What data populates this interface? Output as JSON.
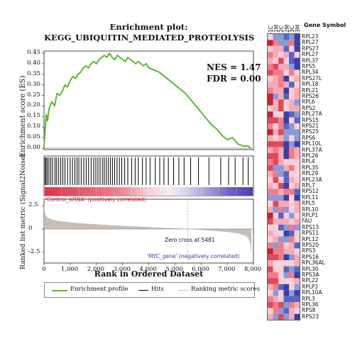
{
  "chart_data": {
    "type": "line",
    "title": "Enrichment plot:",
    "subtitle": "KEGG_UBIQUITIN_MEDIATED_PROTEOLYSIS",
    "nes": "NES = 1.47",
    "fdr": "FDR = 0.00",
    "es_ylabel": "Enrichment score (ES)",
    "es_yticks": [
      "0.45",
      "0.40",
      "0.35",
      "0.30",
      "0.25",
      "0.20",
      "0.15",
      "0.10",
      "0.05",
      "0.00"
    ],
    "es_ylim": [
      0,
      0.45
    ],
    "es_x": [
      0,
      50,
      90,
      130,
      200,
      300,
      400,
      500,
      600,
      700,
      800,
      900,
      1000,
      1100,
      1200,
      1300,
      1400,
      1500,
      1600,
      1700,
      1800,
      1900,
      2000,
      2100,
      2200,
      2300,
      2400,
      2500,
      2600,
      2700,
      2800,
      2900,
      3000,
      3100,
      3200,
      3300,
      3400,
      3500,
      3600,
      3700,
      3800,
      3900,
      4000,
      4200,
      4400,
      4600,
      4800,
      5000,
      5200,
      5400,
      5600,
      5800,
      6000,
      6200,
      6400,
      6600,
      6800,
      7000,
      7200,
      7400,
      7600,
      7800,
      7900
    ],
    "es_y": [
      0,
      0.1,
      0.16,
      0.13,
      0.19,
      0.22,
      0.2,
      0.26,
      0.25,
      0.27,
      0.3,
      0.29,
      0.32,
      0.34,
      0.33,
      0.35,
      0.36,
      0.38,
      0.39,
      0.38,
      0.4,
      0.41,
      0.4,
      0.42,
      0.43,
      0.44,
      0.43,
      0.45,
      0.43,
      0.42,
      0.44,
      0.43,
      0.42,
      0.41,
      0.43,
      0.42,
      0.41,
      0.4,
      0.41,
      0.4,
      0.39,
      0.4,
      0.38,
      0.37,
      0.36,
      0.34,
      0.32,
      0.3,
      0.28,
      0.26,
      0.23,
      0.2,
      0.17,
      0.14,
      0.11,
      0.09,
      0.06,
      0.04,
      0.05,
      0.02,
      0.01,
      0.01,
      0.0
    ],
    "hits": [
      40,
      80,
      130,
      190,
      260,
      330,
      420,
      480,
      560,
      640,
      720,
      800,
      900,
      1000,
      1090,
      1180,
      1260,
      1330,
      1420,
      1520,
      1610,
      1700,
      1800,
      1900,
      1980,
      2060,
      2140,
      2230,
      2300,
      2380,
      2460,
      2540,
      2620,
      2700,
      2790,
      2880,
      2970,
      3080,
      3200,
      3350,
      3480,
      3600,
      3760,
      3900,
      4050,
      4250,
      4420,
      4580,
      4750,
      4950,
      5150,
      5350,
      5600,
      5900,
      6300,
      6750,
      7050,
      7300,
      7600,
      7800
    ],
    "metric_ylabel": "Ranked list metric (Signal2Noise)",
    "metric_yticks": [
      "2.5",
      "0",
      "-2.5"
    ],
    "metric_ylim": [
      -3.2,
      3.2
    ],
    "metric_x": [
      0,
      30,
      80,
      150,
      300,
      600,
      1000,
      1500,
      2000,
      2500,
      3000,
      3500,
      4000,
      4500,
      5000,
      5481,
      6000,
      6500,
      7000,
      7400,
      7700,
      7800,
      7880,
      7920
    ],
    "metric_y": [
      2.7,
      1.8,
      1.4,
      1.2,
      1.0,
      0.85,
      0.7,
      0.6,
      0.5,
      0.42,
      0.35,
      0.28,
      0.2,
      0.13,
      0.07,
      0,
      -0.1,
      -0.2,
      -0.32,
      -0.48,
      -0.75,
      -1.0,
      -1.6,
      -2.7
    ],
    "pos_label": "'Control_siRNA' (positively correlated)",
    "neg_label": "'MYC_gene' (negatively correlated)",
    "zero_cross": "Zero cross at 5481",
    "zero_cross_x": 5481,
    "xlabel": "Rank in Ordered Dataset",
    "xticks": [
      "0",
      "1,000",
      "2,000",
      "3,000",
      "4,000",
      "5,000",
      "6,000",
      "7,000",
      "8,000"
    ],
    "xlim": [
      0,
      8000
    ],
    "legend": [
      "Enrichment profile",
      "Hits",
      "Ranking metric scores"
    ],
    "colors": {
      "es_line": "#5cb82e",
      "hit": "#000000",
      "metric_fill": "#c7beb7",
      "red": "#e2344a",
      "blue": "#4a3fb0"
    }
  },
  "heatmap": {
    "title": "Gene Symbol",
    "columns": [
      "1C",
      "1M",
      "2C",
      "2M",
      "3C",
      "3M"
    ],
    "genes": [
      "RPL23",
      "RPL27",
      "RPS27",
      "RPL27",
      "RPL37",
      "RPS5",
      "RPL34",
      "RPS27L",
      "RPL18",
      "RPL21",
      "RPS26",
      "RPL6",
      "RPS2",
      "RPL27A",
      "RPS15",
      "RPS21",
      "RPS25",
      "RPS6",
      "RPL10L",
      "RPL37A",
      "RPL26",
      "RPL4",
      "RPL35",
      "RPL29",
      "RPL23A",
      "RPL7",
      "RPS12",
      "RPL11",
      "RPL5",
      "RPL10",
      "RPLP1",
      "FAU",
      "RPS13",
      "RPS11",
      "RPL12",
      "RPS20",
      "RPS3",
      "RPS16",
      "RPL36AL",
      "RPL30",
      "RPS3A",
      "RPL22",
      "RPLP2",
      "RPL10A",
      "RPL3",
      "RPL36",
      "RPS8",
      "RPS23"
    ],
    "colors": [
      "#c82030",
      "#e0485a",
      "#f07c8a",
      "#f6aab6",
      "#f8cfd6",
      "#8a9ad8",
      "#5566c0",
      "#3a3ea8",
      "#2c2a8c"
    ]
  }
}
